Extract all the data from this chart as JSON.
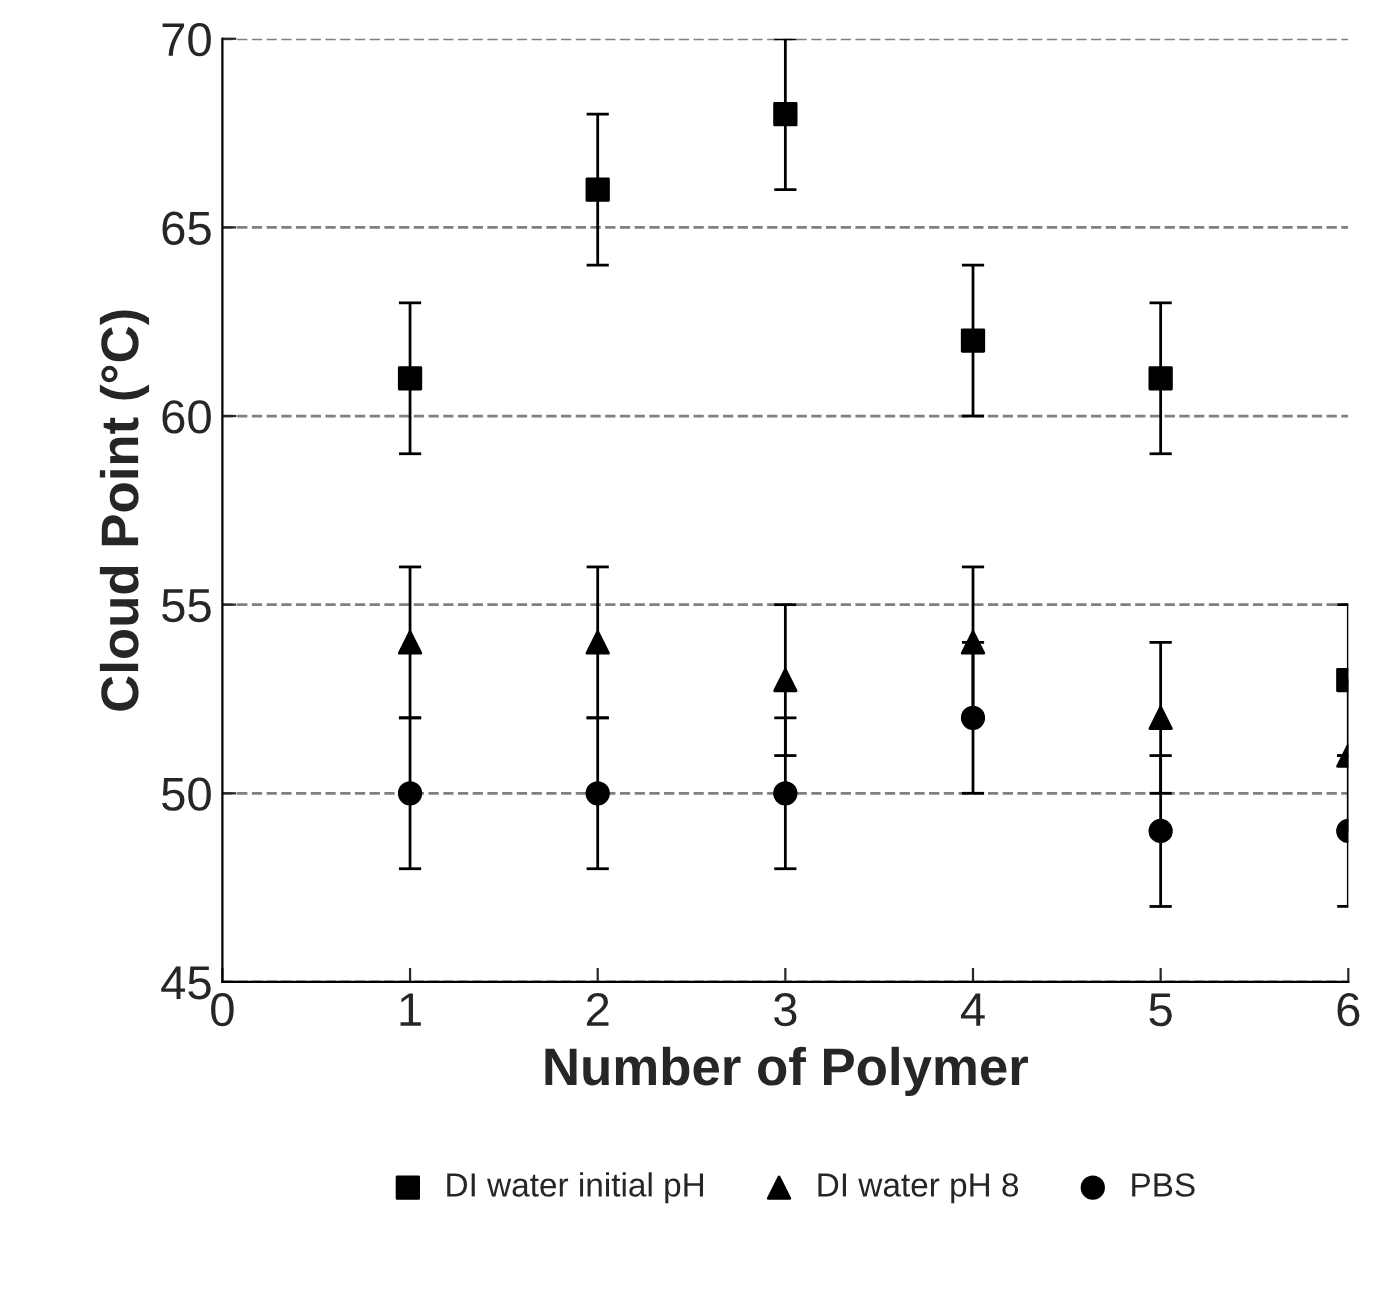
{
  "chart_data": {
    "type": "scatter",
    "xlabel": "Number of Polymer",
    "ylabel": "Cloud Point (°C)",
    "x": [
      1,
      2,
      3,
      4,
      5,
      6
    ],
    "xlim": [
      0,
      6
    ],
    "xticks": [
      0,
      1,
      2,
      3,
      4,
      5,
      6
    ],
    "ylim": [
      45,
      70
    ],
    "yticks": [
      45,
      50,
      55,
      60,
      65,
      70
    ],
    "grid": "y",
    "line_style": "dashed",
    "legend": "bottom",
    "series": [
      {
        "name": "DI water initial pH",
        "color": "#000000",
        "marker": "square",
        "values": [
          61,
          66,
          68,
          62,
          61,
          53
        ],
        "errors": [
          2,
          2,
          2,
          2,
          2,
          2
        ]
      },
      {
        "name": "DI water pH 8",
        "color": "#000000",
        "marker": "triangle",
        "values": [
          54,
          54,
          53,
          54,
          52,
          51
        ],
        "errors": [
          2,
          2,
          2,
          2,
          2,
          2
        ]
      },
      {
        "name": "PBS",
        "color": "#000000",
        "marker": "circle",
        "values": [
          50,
          50,
          50,
          52,
          49,
          49
        ],
        "errors": [
          2,
          2,
          2,
          2,
          2,
          2
        ]
      }
    ]
  }
}
